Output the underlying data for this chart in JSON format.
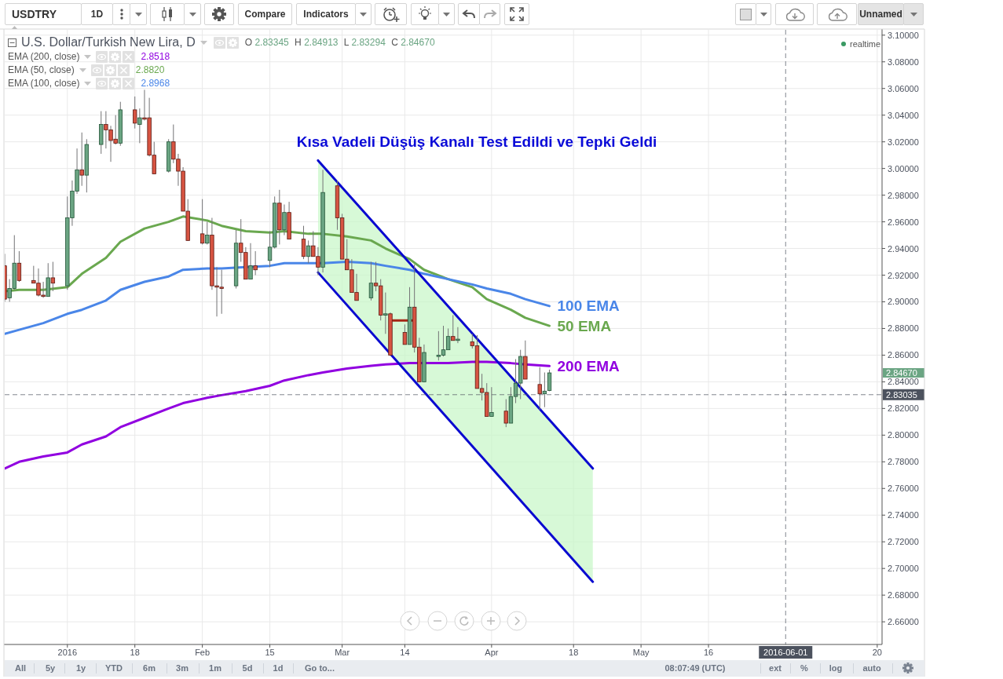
{
  "chart_data": {
    "type": "candlestick",
    "title": "Kısa Vadeli Düşüş Kanalı Test Edildi ve Tepki Geldi",
    "subtitle": "U.S. Dollar/Turkish New Lira, D",
    "x": [
      "2015-12-22",
      "2015-12-23",
      "2015-12-24",
      "2015-12-25",
      "2015-12-28",
      "2015-12-29",
      "2015-12-30",
      "2015-12-31",
      "2016-01-01",
      "2016-01-04",
      "2016-01-05",
      "2016-01-06",
      "2016-01-07",
      "2016-01-08",
      "2016-01-11",
      "2016-01-12",
      "2016-01-13",
      "2016-01-14",
      "2016-01-15",
      "2016-01-18",
      "2016-01-19",
      "2016-01-20",
      "2016-01-21",
      "2016-01-22",
      "2016-01-25",
      "2016-01-26",
      "2016-01-27",
      "2016-01-28",
      "2016-01-29",
      "2016-02-01",
      "2016-02-02",
      "2016-02-03",
      "2016-02-04",
      "2016-02-05",
      "2016-02-08",
      "2016-02-09",
      "2016-02-10",
      "2016-02-11",
      "2016-02-12",
      "2016-02-15",
      "2016-02-16",
      "2016-02-17",
      "2016-02-18",
      "2016-02-19",
      "2016-02-22",
      "2016-02-23",
      "2016-02-24",
      "2016-02-25",
      "2016-02-26",
      "2016-02-29",
      "2016-03-01",
      "2016-03-02",
      "2016-03-03",
      "2016-03-04",
      "2016-03-07",
      "2016-03-08",
      "2016-03-09",
      "2016-03-10",
      "2016-03-11",
      "2016-03-14",
      "2016-03-15",
      "2016-03-16",
      "2016-03-17",
      "2016-03-18",
      "2016-03-21",
      "2016-03-22",
      "2016-03-23",
      "2016-03-24",
      "2016-03-25",
      "2016-03-28",
      "2016-03-29",
      "2016-03-30",
      "2016-03-31",
      "2016-04-01",
      "2016-04-04",
      "2016-04-05",
      "2016-04-06",
      "2016-04-07",
      "2016-04-08",
      "2016-04-11",
      "2016-04-12",
      "2016-04-13"
    ],
    "ohlc": [
      [
        2.927,
        2.936,
        2.9,
        2.902
      ],
      [
        2.903,
        2.917,
        2.9,
        2.91
      ],
      [
        2.91,
        2.95,
        2.909,
        2.929
      ],
      [
        2.929,
        2.938,
        2.915,
        2.916
      ],
      [
        2.916,
        2.927,
        2.914,
        2.914
      ],
      [
        2.914,
        2.925,
        2.904,
        2.905
      ],
      [
        2.905,
        2.915,
        2.903,
        2.904
      ],
      [
        2.904,
        2.929,
        2.904,
        2.918
      ],
      [
        2.918,
        2.93,
        2.908,
        2.914
      ],
      [
        2.912,
        2.979,
        2.909,
        2.963
      ],
      [
        2.963,
        2.991,
        2.957,
        2.983
      ],
      [
        2.983,
        3.015,
        2.981,
        2.999
      ],
      [
        2.999,
        3.027,
        2.987,
        2.995
      ],
      [
        2.995,
        3.022,
        2.982,
        3.018
      ],
      [
        3.018,
        3.043,
        3.011,
        3.033
      ],
      [
        3.033,
        3.043,
        3.015,
        3.029
      ],
      [
        3.029,
        3.032,
        3.005,
        3.021
      ],
      [
        3.022,
        3.04,
        3.018,
        3.019
      ],
      [
        3.019,
        3.05,
        3.017,
        3.044
      ],
      [
        3.044,
        3.054,
        3.03,
        3.034
      ],
      [
        3.033,
        3.045,
        3.019,
        3.038
      ],
      [
        3.038,
        3.059,
        3.036,
        3.037
      ],
      [
        3.038,
        3.053,
        3.009,
        3.01
      ],
      [
        3.01,
        3.02,
        2.996,
        2.996
      ],
      [
        2.998,
        3.022,
        2.997,
        3.02
      ],
      [
        3.02,
        3.033,
        3.004,
        3.007
      ],
      [
        3.007,
        3.011,
        2.987,
        2.998
      ],
      [
        2.998,
        3.001,
        2.968,
        2.968
      ],
      [
        2.968,
        2.977,
        2.946,
        2.946
      ],
      [
        2.951,
        2.977,
        2.943,
        2.944
      ],
      [
        2.944,
        2.96,
        2.943,
        2.95
      ],
      [
        2.95,
        2.963,
        2.909,
        2.912
      ],
      [
        2.912,
        2.926,
        2.889,
        2.911
      ],
      [
        2.911,
        2.924,
        2.891,
        2.91
      ],
      [
        2.912,
        2.954,
        2.91,
        2.944
      ],
      [
        2.944,
        2.962,
        2.93,
        2.937
      ],
      [
        2.937,
        2.941,
        2.917,
        2.917
      ],
      [
        2.917,
        2.944,
        2.917,
        2.927
      ],
      [
        2.927,
        2.938,
        2.92,
        2.924
      ],
      [
        2.931,
        2.953,
        2.926,
        2.941
      ],
      [
        2.941,
        2.979,
        2.94,
        2.974
      ],
      [
        2.974,
        2.984,
        2.943,
        2.954
      ],
      [
        2.954,
        2.973,
        2.95,
        2.967
      ],
      [
        2.967,
        2.975,
        2.947,
        2.947
      ],
      [
        2.947,
        2.957,
        2.932,
        2.934
      ],
      [
        2.934,
        2.946,
        2.929,
        2.942
      ],
      [
        2.942,
        2.953,
        2.934,
        2.934
      ],
      [
        2.934,
        2.941,
        2.92,
        2.926
      ],
      [
        2.926,
        2.999,
        2.922,
        2.982
      ],
      [
        2.987,
        2.991,
        2.954,
        2.963
      ],
      [
        2.963,
        2.966,
        2.932,
        2.932
      ],
      [
        2.932,
        2.947,
        2.924,
        2.924
      ],
      [
        2.924,
        2.932,
        2.907,
        2.907
      ],
      [
        2.907,
        2.921,
        2.901,
        2.901
      ],
      [
        2.903,
        2.93,
        2.901,
        2.914
      ],
      [
        2.914,
        2.93,
        2.908,
        2.912
      ],
      [
        2.912,
        2.917,
        2.886,
        2.89
      ],
      [
        2.89,
        2.907,
        2.876,
        2.891
      ],
      [
        2.891,
        2.892,
        2.86,
        2.86
      ],
      [
        2.877,
        2.883,
        2.868,
        2.868
      ],
      [
        2.868,
        2.911,
        2.868,
        2.896
      ],
      [
        2.896,
        2.928,
        2.862,
        2.866
      ],
      [
        2.866,
        2.873,
        2.84,
        2.84
      ],
      [
        2.84,
        2.868,
        2.84,
        2.862
      ],
      [
        2.859,
        2.878,
        2.856,
        2.86
      ],
      [
        2.86,
        2.882,
        2.859,
        2.864
      ],
      [
        2.864,
        2.88,
        2.864,
        2.874
      ],
      [
        2.874,
        2.89,
        2.871,
        2.871
      ],
      [
        2.871,
        2.881,
        2.869,
        2.872
      ],
      [
        2.87,
        2.876,
        2.865,
        2.867
      ],
      [
        2.867,
        2.875,
        2.835,
        2.835
      ],
      [
        2.835,
        2.846,
        2.826,
        2.832
      ],
      [
        2.832,
        2.839,
        2.814,
        2.814
      ],
      [
        2.814,
        2.836,
        2.814,
        2.817
      ],
      [
        2.818,
        2.827,
        2.806,
        2.809
      ],
      [
        2.809,
        2.836,
        2.809,
        2.829
      ],
      [
        2.829,
        2.857,
        2.824,
        2.839
      ],
      [
        2.839,
        2.864,
        2.827,
        2.859
      ],
      [
        2.859,
        2.871,
        2.842,
        2.842
      ],
      [
        2.838,
        2.851,
        2.819,
        2.831
      ],
      [
        2.831,
        2.847,
        2.821,
        2.833
      ],
      [
        2.83345,
        2.84913,
        2.83294,
        2.8467
      ]
    ],
    "series": [
      {
        "name": "200 EMA",
        "type": "line",
        "color": "#9100e0",
        "x": [
          "2015-12-22",
          "2015-12-25",
          "2015-12-30",
          "2016-01-04",
          "2016-01-07",
          "2016-01-12",
          "2016-01-15",
          "2016-01-20",
          "2016-01-25",
          "2016-01-28",
          "2016-02-02",
          "2016-02-05",
          "2016-02-10",
          "2016-02-15",
          "2016-02-18",
          "2016-02-23",
          "2016-02-26",
          "2016-03-02",
          "2016-03-07",
          "2016-03-10",
          "2016-03-15",
          "2016-03-18",
          "2016-03-23",
          "2016-03-28",
          "2016-03-31",
          "2016-04-05",
          "2016-04-08",
          "2016-04-13"
        ],
        "values": [
          2.775,
          2.78,
          2.784,
          2.787,
          2.793,
          2.799,
          2.806,
          2.813,
          2.82,
          2.824,
          2.828,
          2.83,
          2.833,
          2.837,
          2.841,
          2.845,
          2.847,
          2.85,
          2.852,
          2.853,
          2.854,
          2.854,
          2.854,
          2.855,
          2.855,
          2.854,
          2.853,
          2.8518
        ]
      },
      {
        "name": "50 EMA",
        "type": "line",
        "color": "#6aa84f",
        "x": [
          "2015-12-22",
          "2015-12-25",
          "2015-12-30",
          "2016-01-04",
          "2016-01-07",
          "2016-01-12",
          "2016-01-15",
          "2016-01-20",
          "2016-01-25",
          "2016-01-28",
          "2016-02-02",
          "2016-02-05",
          "2016-02-10",
          "2016-02-15",
          "2016-02-18",
          "2016-02-23",
          "2016-02-26",
          "2016-03-02",
          "2016-03-07",
          "2016-03-10",
          "2016-03-15",
          "2016-03-18",
          "2016-03-23",
          "2016-03-28",
          "2016-03-31",
          "2016-04-05",
          "2016-04-08",
          "2016-04-13"
        ],
        "values": [
          2.908,
          2.909,
          2.909,
          2.911,
          2.921,
          2.933,
          2.945,
          2.955,
          2.96,
          2.964,
          2.961,
          2.957,
          2.953,
          2.952,
          2.953,
          2.951,
          2.951,
          2.949,
          2.946,
          2.94,
          2.932,
          2.924,
          2.917,
          2.911,
          2.902,
          2.894,
          2.888,
          2.882
        ]
      },
      {
        "name": "100 EMA",
        "type": "line",
        "color": "#4a86e8",
        "x": [
          "2015-12-22",
          "2015-12-25",
          "2015-12-30",
          "2016-01-04",
          "2016-01-07",
          "2016-01-12",
          "2016-01-15",
          "2016-01-20",
          "2016-01-25",
          "2016-01-28",
          "2016-02-02",
          "2016-02-05",
          "2016-02-10",
          "2016-02-15",
          "2016-02-18",
          "2016-02-23",
          "2016-02-26",
          "2016-03-02",
          "2016-03-07",
          "2016-03-10",
          "2016-03-15",
          "2016-03-18",
          "2016-03-23",
          "2016-03-28",
          "2016-03-31",
          "2016-04-05",
          "2016-04-08",
          "2016-04-13"
        ],
        "values": [
          2.876,
          2.879,
          2.884,
          2.891,
          2.894,
          2.901,
          2.909,
          2.915,
          2.919,
          2.924,
          2.925,
          2.925,
          2.926,
          2.927,
          2.929,
          2.929,
          2.929,
          2.93,
          2.929,
          2.927,
          2.924,
          2.921,
          2.917,
          2.913,
          2.91,
          2.906,
          2.902,
          2.8968
        ]
      },
      {
        "type": "line",
        "color": "#0a0ad0",
        "x": [
          "2016-02-25",
          "2016-04-22"
        ],
        "values": [
          3.006,
          2.775
        ],
        "lower": [
          2.922,
          2.69
        ],
        "upper": [
          3.006,
          2.775
        ]
      },
      {
        "type": "line",
        "color": "#0a0ad0",
        "x": [
          "2016-02-25",
          "2016-04-22"
        ],
        "values": [
          2.922,
          2.69
        ]
      },
      {
        "type": "line",
        "color": "#a52714",
        "x": [
          "2016-03-11T12:00",
          "2016-03-15T12:00"
        ],
        "values": [
          2.886,
          2.886
        ]
      }
    ],
    "xlim": [
      "2015-12-22",
      "2016-06-21"
    ],
    "xticks": [
      {
        "value": "2016-01-04",
        "label": "2016"
      },
      {
        "value": "2016-01-18",
        "label": "18"
      },
      {
        "value": "2016-02-01",
        "label": "Feb"
      },
      {
        "value": "2016-02-15",
        "label": "15"
      },
      {
        "value": "2016-03-01",
        "label": "Mar"
      },
      {
        "value": "2016-03-14",
        "label": "14"
      },
      {
        "value": "2016-04-01",
        "label": "Apr"
      },
      {
        "value": "2016-04-18",
        "label": "18"
      },
      {
        "value": "2016-05-02",
        "label": "May"
      },
      {
        "value": "2016-05-16",
        "label": "16"
      },
      {
        "value": "2016-06-20",
        "label": "20"
      }
    ],
    "ylim": [
      2.643,
      3.104
    ],
    "yticks": [
      {
        "value": 2.66,
        "label": "2.66000"
      },
      {
        "value": 2.68,
        "label": "2.68000"
      },
      {
        "value": 2.7,
        "label": "2.70000"
      },
      {
        "value": 2.72,
        "label": "2.72000"
      },
      {
        "value": 2.74,
        "label": "2.74000"
      },
      {
        "value": 2.76,
        "label": "2.76000"
      },
      {
        "value": 2.78,
        "label": "2.78000"
      },
      {
        "value": 2.8,
        "label": "2.80000"
      },
      {
        "value": 2.82,
        "label": "2.82000"
      },
      {
        "value": 2.84,
        "label": "2.84000"
      },
      {
        "value": 2.86,
        "label": "2.86000"
      },
      {
        "value": 2.88,
        "label": "2.88000"
      },
      {
        "value": 2.9,
        "label": "2.90000"
      },
      {
        "value": 2.92,
        "label": "2.92000"
      },
      {
        "value": 2.94,
        "label": "2.94000"
      },
      {
        "value": 2.96,
        "label": "2.96000"
      },
      {
        "value": 2.98,
        "label": "2.98000"
      },
      {
        "value": 3.0,
        "label": "3.00000"
      },
      {
        "value": 3.02,
        "label": "3.02000"
      },
      {
        "value": 3.04,
        "label": "3.04000"
      },
      {
        "value": 3.06,
        "label": "3.06000"
      },
      {
        "value": 3.08,
        "label": "3.08000"
      },
      {
        "value": 3.1,
        "label": "3.10000"
      }
    ],
    "grid": true,
    "ref_lines": [
      {
        "axis": "x",
        "value": "2016-06-01",
        "label": "2016-06-01",
        "line_style": "dashed",
        "color": "#4c525e"
      },
      {
        "axis": "y",
        "value": 2.83035,
        "label": "2.83035",
        "line_style": "dashed",
        "color": "#4c525e"
      }
    ],
    "annotations": [
      "O 2.83345 H 2.84913 L 2.83294 C 2.84670",
      "EMA (200, close)",
      "2.8518",
      "EMA (50, close)",
      "2.8820",
      "EMA (100, close)",
      "2.8968",
      "realtime",
      "2.84670",
      "USDTRY",
      "1D",
      "Compare",
      "Indicators",
      "Unnamed",
      "All",
      "5y",
      "1y",
      "YTD",
      "6m",
      "3m",
      "1m",
      "5d",
      "1d",
      "Go to...",
      "08:07:49 (UTC)",
      "ext",
      "%",
      "log",
      "auto"
    ]
  }
}
